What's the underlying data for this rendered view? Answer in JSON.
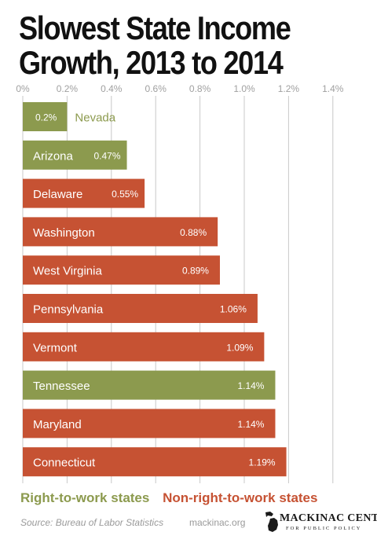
{
  "title_line1": "Slowest State Income",
  "title_line2": "Growth, 2013 to 2014",
  "chart_data": {
    "type": "bar",
    "orientation": "horizontal",
    "title": "Slowest State Income Growth, 2013 to 2014",
    "xlim": [
      0,
      1.4
    ],
    "ticks": [
      0,
      0.2,
      0.4,
      0.6,
      0.8,
      1.0,
      1.2,
      1.4
    ],
    "tick_labels": [
      "0%",
      "0.2%",
      "0.4%",
      "0.6%",
      "0.8%",
      "1.0%",
      "1.2%",
      "1.4%"
    ],
    "grid": true,
    "categories": [
      "Nevada",
      "Arizona",
      "Delaware",
      "Washington",
      "West Virginia",
      "Pennsylvania",
      "Vermont",
      "Tennessee",
      "Maryland",
      "Connecticut"
    ],
    "values": [
      0.2,
      0.47,
      0.55,
      0.88,
      0.89,
      1.06,
      1.09,
      1.14,
      1.14,
      1.19
    ],
    "value_labels": [
      "0.2%",
      "0.47%",
      "0.55%",
      "0.88%",
      "0.89%",
      "1.06%",
      "1.09%",
      "1.14%",
      "1.14%",
      "1.19%"
    ],
    "groups": [
      "rtw",
      "rtw",
      "nrtw",
      "nrtw",
      "nrtw",
      "nrtw",
      "nrtw",
      "rtw",
      "nrtw",
      "nrtw"
    ],
    "colors": {
      "rtw": "#8c9a4e",
      "nrtw": "#c65233",
      "grid": "#c8c8c8",
      "tick": "#a0a0a0"
    }
  },
  "legend": {
    "rtw": "Right-to-work states",
    "nrtw": "Non-right-to-work states"
  },
  "footer": {
    "source": "Source: Bureau of Labor Statistics",
    "site": "mackinac.org",
    "logo_text": "MACKINAC CENTER",
    "logo_sub": "FOR PUBLIC POLICY"
  }
}
